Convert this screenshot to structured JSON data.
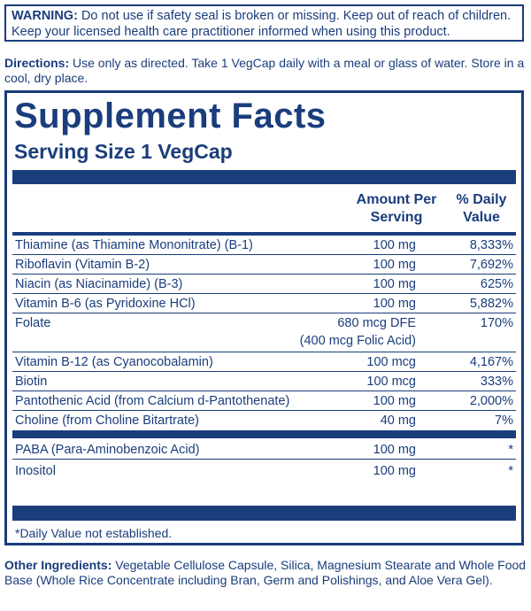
{
  "warning": {
    "label": "WARNING:",
    "text": " Do not use if safety seal is broken or missing. Keep out of reach of children. Keep your licensed health care practitioner informed when using this product."
  },
  "directions": {
    "label": "Directions:",
    "text": " Use only as directed. Take 1 VegCap daily with a meal or glass of water. Store in a cool, dry place."
  },
  "facts": {
    "title": "Supplement Facts",
    "serving_size": "Serving Size 1 VegCap",
    "col_amount_line1": "Amount Per",
    "col_amount_line2": "Serving",
    "col_dv_line1": "% Daily",
    "col_dv_line2": "Value",
    "rows": [
      {
        "name": "Thiamine (as Thiamine Mononitrate) (B-1)",
        "amount": "100 mg",
        "dv": "8,333%"
      },
      {
        "name": "Riboflavin (Vitamin B-2)",
        "amount": "100 mg",
        "dv": "7,692%"
      },
      {
        "name": "Niacin (as Niacinamide) (B-3)",
        "amount": "100 mg",
        "dv": "625%"
      },
      {
        "name": "Vitamin B-6 (as Pyridoxine HCl)",
        "amount": "100 mg",
        "dv": "5,882%"
      },
      {
        "name": "Folate",
        "amount": "680 mcg DFE",
        "amount2": "(400 mcg Folic Acid)",
        "dv": "170%"
      },
      {
        "name": "Vitamin B-12 (as Cyanocobalamin)",
        "amount": "100 mcg",
        "dv": "4,167%"
      },
      {
        "name": "Biotin",
        "amount": "100 mcg",
        "dv": "333%"
      },
      {
        "name": "Pantothenic Acid (from Calcium d-Pantothenate)",
        "amount": "100 mg",
        "dv": "2,000%"
      },
      {
        "name": "Choline (from Choline Bitartrate)",
        "amount": "40 mg",
        "dv": "7%"
      },
      {
        "name": "PABA (Para-Aminobenzoic Acid)",
        "amount": "100 mg",
        "dv": "*"
      },
      {
        "name": "Inositol",
        "amount": "100 mg",
        "dv": "*"
      }
    ],
    "footnote": "*Daily Value not established."
  },
  "other_ingredients": {
    "label": "Other Ingredients:",
    "text": " Vegetable Cellulose Capsule, Silica, Magnesium Stearate and Whole Food Base (Whole Rice Concentrate including Bran, Germ and Polishings, and Aloe Vera Gel)."
  },
  "colors": {
    "ink": "#1a3d7c",
    "background": "#ffffff"
  }
}
